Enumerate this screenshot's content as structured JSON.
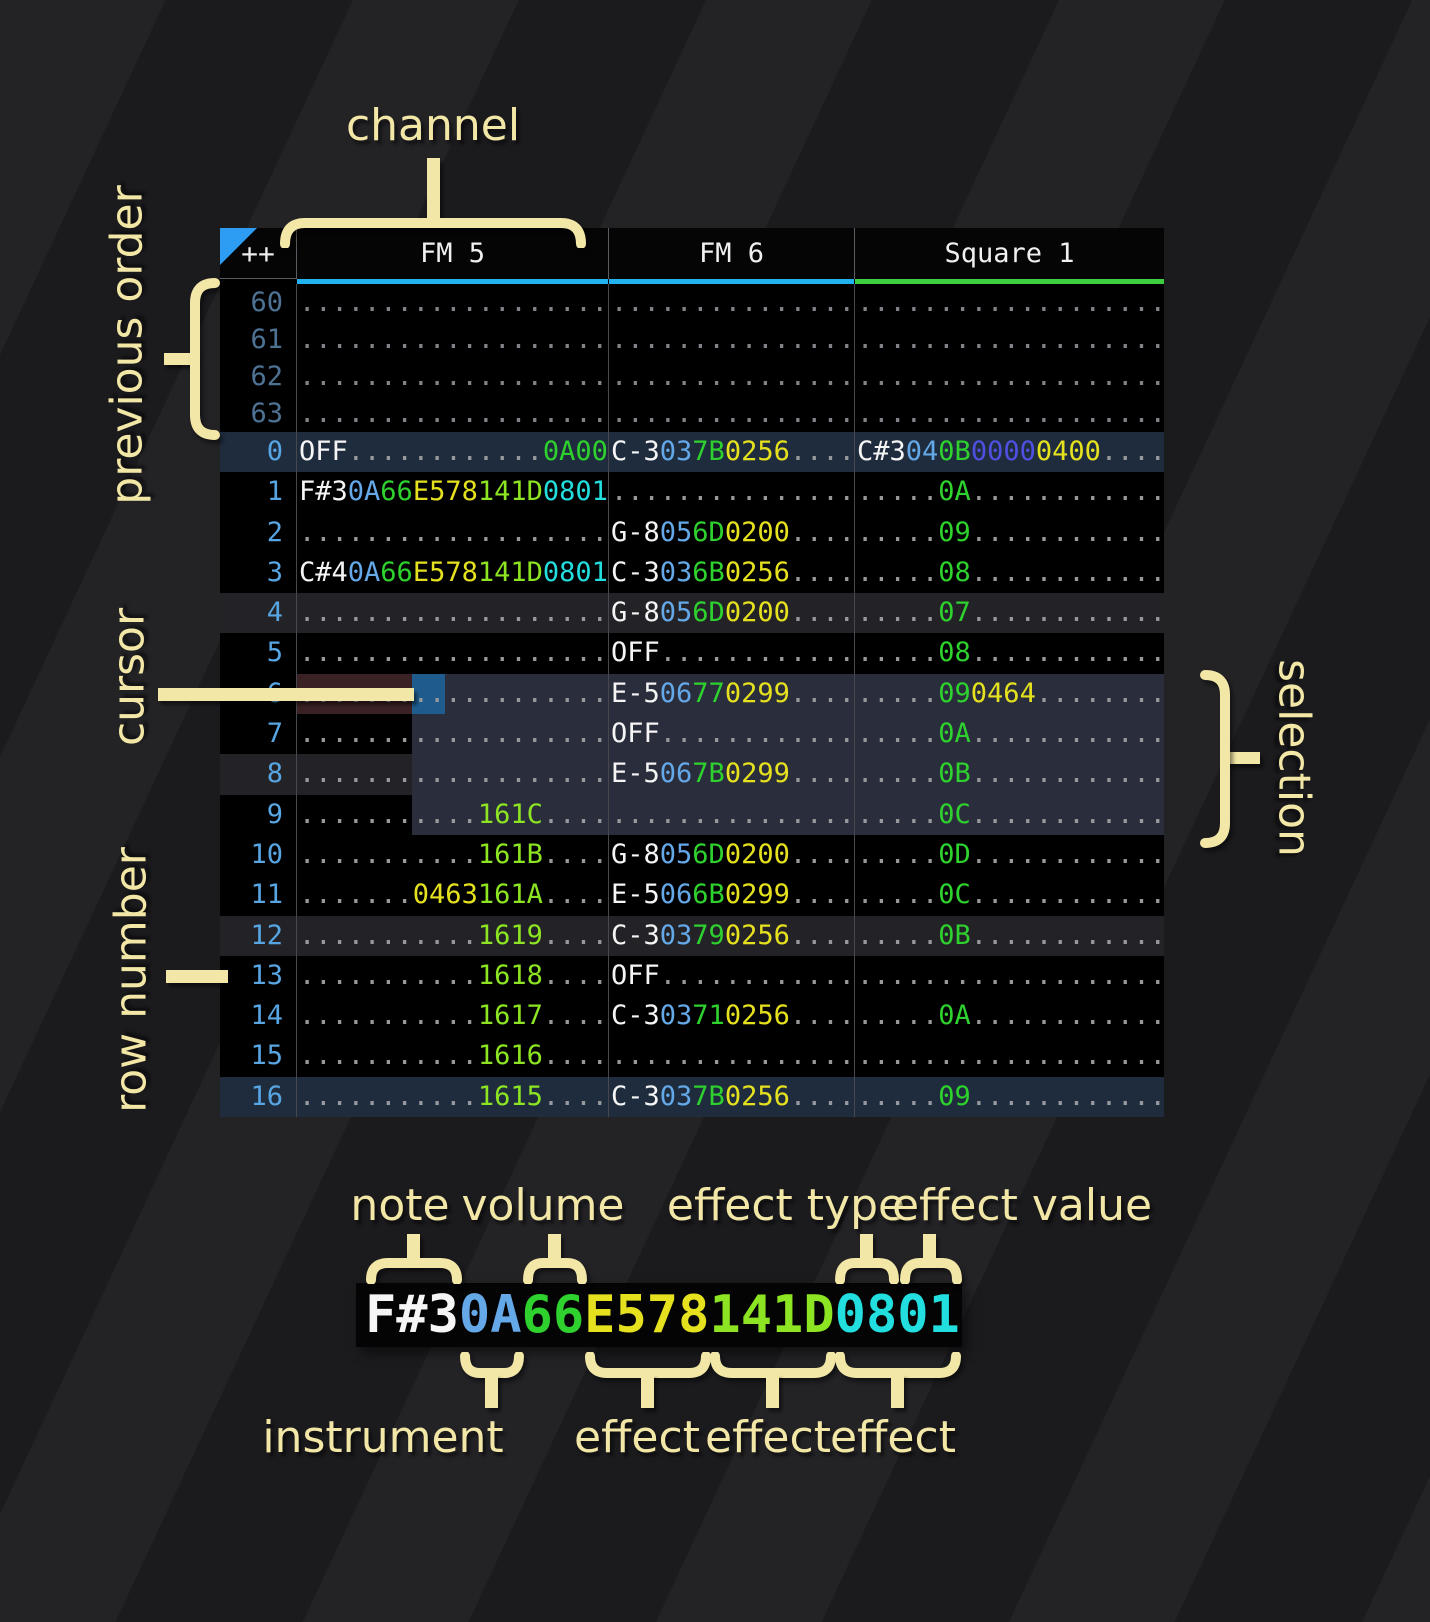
{
  "annotations": {
    "channel": "channel",
    "previous_order": "previous order",
    "cursor": "cursor",
    "row_number": "row number",
    "selection": "selection"
  },
  "legend": {
    "note": "note",
    "volume": "volume",
    "effect_type": "effect type",
    "effect_value": "effect value",
    "instrument": "instrument",
    "effect": "effect",
    "cell": [
      [
        "n",
        "F#3"
      ],
      [
        "i",
        "0A"
      ],
      [
        "v",
        "66"
      ],
      [
        "y",
        "E578"
      ],
      [
        "l",
        "141D"
      ],
      [
        "c",
        "0801"
      ]
    ]
  },
  "tracker": {
    "corner": "++",
    "channels": [
      {
        "label": "FM 5",
        "accent": "#21b3ef"
      },
      {
        "label": "FM 6",
        "accent": "#21b3ef"
      },
      {
        "label": "Square 1",
        "accent": "#3ecf3e"
      }
    ],
    "state": {
      "cursor": {
        "row": 6,
        "channel": "FM 5"
      },
      "selection": {
        "from_row": 6,
        "to_row": 9
      }
    },
    "rows": [
      {
        "n": "60",
        "prev": 1,
        "c": [
          [
            [
              "d",
              19
            ]
          ],
          [
            [
              "d",
              15
            ]
          ],
          [
            [
              "d",
              19
            ]
          ]
        ]
      },
      {
        "n": "61",
        "prev": 1,
        "c": [
          [
            [
              "d",
              19
            ]
          ],
          [
            [
              "d",
              15
            ]
          ],
          [
            [
              "d",
              19
            ]
          ]
        ]
      },
      {
        "n": "62",
        "prev": 1,
        "c": [
          [
            [
              "d",
              19
            ]
          ],
          [
            [
              "d",
              15
            ]
          ],
          [
            [
              "d",
              19
            ]
          ]
        ]
      },
      {
        "n": "63",
        "prev": 1,
        "c": [
          [
            [
              "d",
              19
            ]
          ],
          [
            [
              "d",
              15
            ]
          ],
          [
            [
              "d",
              19
            ]
          ]
        ]
      },
      {
        "n": "0",
        "hl": "h16",
        "c": [
          [
            [
              "n",
              "OFF"
            ],
            [
              "d",
              12
            ],
            [
              "g",
              "0A00"
            ]
          ],
          [
            [
              "n",
              "C-3"
            ],
            [
              "i",
              "03"
            ],
            [
              "v",
              "7B"
            ],
            [
              "y",
              "0256"
            ],
            [
              "d",
              4
            ]
          ],
          [
            [
              "n",
              "C#3"
            ],
            [
              "i",
              "04"
            ],
            [
              "v",
              "0B"
            ],
            [
              "p",
              "0000"
            ],
            [
              "y",
              "0400"
            ],
            [
              "d",
              4
            ]
          ]
        ]
      },
      {
        "n": "1",
        "c": [
          [
            [
              "n",
              "F#3"
            ],
            [
              "i",
              "0A"
            ],
            [
              "v",
              "66"
            ],
            [
              "y",
              "E578"
            ],
            [
              "l",
              "141D"
            ],
            [
              "c",
              "0801"
            ]
          ],
          [
            [
              "d",
              15
            ]
          ],
          [
            [
              "d",
              5
            ],
            [
              "v",
              "0A"
            ],
            [
              "d",
              12
            ]
          ]
        ]
      },
      {
        "n": "2",
        "c": [
          [
            [
              "d",
              19
            ]
          ],
          [
            [
              "n",
              "G-8"
            ],
            [
              "i",
              "05"
            ],
            [
              "v",
              "6D"
            ],
            [
              "y",
              "0200"
            ],
            [
              "d",
              4
            ]
          ],
          [
            [
              "d",
              5
            ],
            [
              "v",
              "09"
            ],
            [
              "d",
              12
            ]
          ]
        ]
      },
      {
        "n": "3",
        "c": [
          [
            [
              "n",
              "C#4"
            ],
            [
              "i",
              "0A"
            ],
            [
              "v",
              "66"
            ],
            [
              "y",
              "E578"
            ],
            [
              "l",
              "141D"
            ],
            [
              "c",
              "0801"
            ]
          ],
          [
            [
              "n",
              "C-3"
            ],
            [
              "i",
              "03"
            ],
            [
              "v",
              "6B"
            ],
            [
              "y",
              "0256"
            ],
            [
              "d",
              4
            ]
          ],
          [
            [
              "d",
              5
            ],
            [
              "v",
              "08"
            ],
            [
              "d",
              12
            ]
          ]
        ]
      },
      {
        "n": "4",
        "hl": "h4",
        "c": [
          [
            [
              "d",
              19
            ]
          ],
          [
            [
              "n",
              "G-8"
            ],
            [
              "i",
              "05"
            ],
            [
              "v",
              "6D"
            ],
            [
              "y",
              "0200"
            ],
            [
              "d",
              4
            ]
          ],
          [
            [
              "d",
              5
            ],
            [
              "v",
              "07"
            ],
            [
              "d",
              12
            ]
          ]
        ]
      },
      {
        "n": "5",
        "c": [
          [
            [
              "d",
              19
            ]
          ],
          [
            [
              "n",
              "OFF"
            ],
            [
              "d",
              12
            ]
          ],
          [
            [
              "d",
              5
            ],
            [
              "v",
              "08"
            ],
            [
              "d",
              12
            ]
          ]
        ]
      },
      {
        "n": "6",
        "cursor": 1,
        "c": [
          [
            [
              "d",
              19
            ]
          ],
          [
            [
              "n",
              "E-5"
            ],
            [
              "i",
              "06"
            ],
            [
              "v",
              "77"
            ],
            [
              "y",
              "0299"
            ],
            [
              "d",
              4
            ]
          ],
          [
            [
              "d",
              5
            ],
            [
              "v",
              "09"
            ],
            [
              "y",
              "0464"
            ],
            [
              "d",
              8
            ]
          ]
        ]
      },
      {
        "n": "7",
        "c": [
          [
            [
              "d",
              19
            ]
          ],
          [
            [
              "n",
              "OFF"
            ],
            [
              "d",
              12
            ]
          ],
          [
            [
              "d",
              5
            ],
            [
              "v",
              "0A"
            ],
            [
              "d",
              12
            ]
          ]
        ]
      },
      {
        "n": "8",
        "hl": "h4",
        "c": [
          [
            [
              "d",
              19
            ]
          ],
          [
            [
              "n",
              "E-5"
            ],
            [
              "i",
              "06"
            ],
            [
              "v",
              "7B"
            ],
            [
              "y",
              "0299"
            ],
            [
              "d",
              4
            ]
          ],
          [
            [
              "d",
              5
            ],
            [
              "v",
              "0B"
            ],
            [
              "d",
              12
            ]
          ]
        ]
      },
      {
        "n": "9",
        "c": [
          [
            [
              "d",
              11
            ],
            [
              "l",
              "161C"
            ],
            [
              "d",
              4
            ]
          ],
          [
            [
              "d",
              15
            ]
          ],
          [
            [
              "d",
              5
            ],
            [
              "v",
              "0C"
            ],
            [
              "d",
              12
            ]
          ]
        ]
      },
      {
        "n": "10",
        "c": [
          [
            [
              "d",
              11
            ],
            [
              "l",
              "161B"
            ],
            [
              "d",
              4
            ]
          ],
          [
            [
              "n",
              "G-8"
            ],
            [
              "i",
              "05"
            ],
            [
              "v",
              "6D"
            ],
            [
              "y",
              "0200"
            ],
            [
              "d",
              4
            ]
          ],
          [
            [
              "d",
              5
            ],
            [
              "v",
              "0D"
            ],
            [
              "d",
              12
            ]
          ]
        ]
      },
      {
        "n": "11",
        "c": [
          [
            [
              "d",
              7
            ],
            [
              "y",
              "0463"
            ],
            [
              "l",
              "161A"
            ],
            [
              "d",
              4
            ]
          ],
          [
            [
              "n",
              "E-5"
            ],
            [
              "i",
              "06"
            ],
            [
              "v",
              "6B"
            ],
            [
              "y",
              "0299"
            ],
            [
              "d",
              4
            ]
          ],
          [
            [
              "d",
              5
            ],
            [
              "v",
              "0C"
            ],
            [
              "d",
              12
            ]
          ]
        ]
      },
      {
        "n": "12",
        "hl": "h4",
        "c": [
          [
            [
              "d",
              11
            ],
            [
              "l",
              "1619"
            ],
            [
              "d",
              4
            ]
          ],
          [
            [
              "n",
              "C-3"
            ],
            [
              "i",
              "03"
            ],
            [
              "v",
              "79"
            ],
            [
              "y",
              "0256"
            ],
            [
              "d",
              4
            ]
          ],
          [
            [
              "d",
              5
            ],
            [
              "v",
              "0B"
            ],
            [
              "d",
              12
            ]
          ]
        ]
      },
      {
        "n": "13",
        "c": [
          [
            [
              "d",
              11
            ],
            [
              "l",
              "1618"
            ],
            [
              "d",
              4
            ]
          ],
          [
            [
              "n",
              "OFF"
            ],
            [
              "d",
              12
            ]
          ],
          [
            [
              "d",
              19
            ]
          ]
        ]
      },
      {
        "n": "14",
        "c": [
          [
            [
              "d",
              11
            ],
            [
              "l",
              "1617"
            ],
            [
              "d",
              4
            ]
          ],
          [
            [
              "n",
              "C-3"
            ],
            [
              "i",
              "03"
            ],
            [
              "v",
              "71"
            ],
            [
              "y",
              "0256"
            ],
            [
              "d",
              4
            ]
          ],
          [
            [
              "d",
              5
            ],
            [
              "v",
              "0A"
            ],
            [
              "d",
              12
            ]
          ]
        ]
      },
      {
        "n": "15",
        "c": [
          [
            [
              "d",
              11
            ],
            [
              "l",
              "1616"
            ],
            [
              "d",
              4
            ]
          ],
          [
            [
              "d",
              15
            ]
          ],
          [
            [
              "d",
              19
            ]
          ]
        ]
      },
      {
        "n": "16",
        "hl": "h16",
        "c": [
          [
            [
              "d",
              11
            ],
            [
              "l",
              "1615"
            ],
            [
              "d",
              4
            ]
          ],
          [
            [
              "n",
              "C-3"
            ],
            [
              "i",
              "03"
            ],
            [
              "v",
              "7B"
            ],
            [
              "y",
              "0256"
            ],
            [
              "d",
              4
            ]
          ],
          [
            [
              "d",
              5
            ],
            [
              "v",
              "09"
            ],
            [
              "d",
              12
            ]
          ]
        ]
      }
    ]
  },
  "colors": {
    "note": "#f5f5f5",
    "instrument": "#64a8e8",
    "volume": "#2ed12e",
    "fx_yellow": "#e5e11f",
    "fx_lime": "#8ce422",
    "fx_cyan": "#22dede",
    "fx_indigo": "#5050e0",
    "fx_green": "#2ed12e",
    "row_number": "#57a5e3",
    "prev_row_number": "#4e7294",
    "hl16_bg": "#1e2c3d",
    "hl4_bg": "#232327",
    "selection_bg": "#2a2d3c",
    "cursor_bg": "#1f5c8d",
    "cursor_row_tint": "#3a2124",
    "annotation": "#f2e7a6",
    "corner_triangle": "#2d9df4",
    "accent_fm": "#21b3ef",
    "accent_square": "#3ecf3e"
  }
}
